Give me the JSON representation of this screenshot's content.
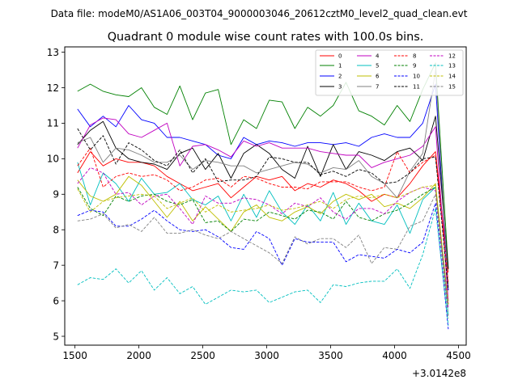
{
  "chart_data": {
    "type": "line",
    "suptitle": "Data file: modeM0/AS1A06_003T04_9000003046_20612cztM0_level2_quad_clean.evt",
    "title": "Quadrant 0 module wise count rates with 100.0s bins.",
    "xlabel": "",
    "ylabel": "",
    "x_offset_label": "+3.0142e8",
    "xlim": [
      1420,
      4560
    ],
    "ylim": [
      4.75,
      13.15
    ],
    "xticks": [
      1500,
      2000,
      2500,
      3000,
      3500,
      4000,
      4500
    ],
    "xtick_labels": [
      "1500",
      "2000",
      "2500",
      "3000",
      "3500",
      "4000",
      "4500"
    ],
    "yticks": [
      5,
      6,
      7,
      8,
      9,
      10,
      11,
      12,
      13
    ],
    "ytick_labels": [
      "5",
      "6",
      "7",
      "8",
      "9",
      "10",
      "11",
      "12",
      "13"
    ],
    "grid": false,
    "legend_position": "top-right",
    "x": [
      1520,
      1620,
      1720,
      1820,
      1920,
      2020,
      2120,
      2220,
      2320,
      2420,
      2520,
      2620,
      2720,
      2820,
      2920,
      3020,
      3120,
      3220,
      3320,
      3420,
      3520,
      3620,
      3720,
      3820,
      3920,
      4020,
      4120,
      4220,
      4320,
      4420
    ],
    "series": [
      {
        "name": "0",
        "color": "#ff0000",
        "dash": "solid",
        "values": [
          9.6,
          10.2,
          9.8,
          10.0,
          9.9,
          9.9,
          9.8,
          9.5,
          9.3,
          9.1,
          9.2,
          9.3,
          8.9,
          9.2,
          9.5,
          9.4,
          9.5,
          9.1,
          9.3,
          9.2,
          9.4,
          9.3,
          9.1,
          8.8,
          9.0,
          8.9,
          9.3,
          9.8,
          10.2,
          6.8
        ]
      },
      {
        "name": "1",
        "color": "#008000",
        "dash": "solid",
        "values": [
          11.9,
          12.1,
          11.9,
          11.8,
          11.75,
          12.0,
          11.45,
          11.25,
          12.05,
          11.1,
          11.85,
          11.95,
          10.4,
          11.1,
          10.85,
          11.65,
          11.6,
          10.85,
          11.45,
          11.2,
          11.5,
          12.15,
          11.35,
          11.2,
          10.95,
          11.5,
          11.05,
          11.95,
          12.7,
          6.9
        ]
      },
      {
        "name": "2",
        "color": "#0000ff",
        "dash": "solid",
        "values": [
          11.4,
          10.9,
          11.2,
          10.9,
          11.5,
          11.1,
          11.0,
          10.6,
          10.6,
          10.5,
          10.4,
          10.1,
          10.0,
          10.6,
          10.4,
          10.5,
          10.45,
          10.35,
          10.45,
          10.45,
          10.4,
          10.45,
          10.35,
          10.6,
          10.7,
          10.6,
          10.6,
          11.0,
          12.1,
          6.3
        ]
      },
      {
        "name": "3",
        "color": "#000000",
        "dash": "solid",
        "values": [
          10.4,
          10.8,
          11.05,
          10.3,
          10.0,
          9.9,
          9.85,
          9.7,
          10.15,
          10.3,
          9.7,
          10.15,
          9.45,
          10.15,
          10.4,
          10.15,
          9.7,
          9.45,
          10.35,
          9.5,
          10.4,
          9.7,
          10.2,
          10.1,
          9.95,
          10.2,
          10.3,
          9.95,
          11.2,
          6.9
        ]
      },
      {
        "name": "4",
        "color": "#c000c0",
        "dash": "solid",
        "values": [
          10.3,
          10.95,
          11.15,
          11.1,
          10.7,
          10.6,
          10.8,
          11.0,
          9.8,
          10.35,
          10.4,
          10.25,
          10.05,
          10.5,
          10.35,
          10.45,
          10.3,
          10.3,
          10.3,
          10.2,
          10.15,
          10.1,
          10.1,
          9.75,
          9.9,
          10.0,
          10.1,
          10.35,
          10.9,
          6.0
        ]
      },
      {
        "name": "5",
        "color": "#00bfbf",
        "dash": "solid",
        "values": [
          9.9,
          8.7,
          9.6,
          9.3,
          8.8,
          9.45,
          9.0,
          9.05,
          9.3,
          8.85,
          8.7,
          8.95,
          8.25,
          9.0,
          8.35,
          9.1,
          8.5,
          8.15,
          8.7,
          8.25,
          9.05,
          8.15,
          8.75,
          8.25,
          8.15,
          8.7,
          7.9,
          8.85,
          9.2,
          5.6
        ]
      },
      {
        "name": "6",
        "color": "#bfbf00",
        "dash": "solid",
        "values": [
          9.4,
          8.95,
          8.8,
          9.0,
          9.5,
          9.25,
          8.8,
          8.35,
          8.8,
          8.25,
          8.65,
          8.3,
          7.95,
          8.5,
          8.7,
          8.35,
          8.25,
          8.5,
          8.65,
          8.45,
          8.8,
          9.0,
          8.85,
          9.0,
          8.65,
          8.75,
          8.6,
          8.9,
          9.3,
          5.9
        ]
      },
      {
        "name": "7",
        "color": "#808080",
        "dash": "solid",
        "values": [
          10.45,
          10.6,
          9.9,
          10.3,
          10.25,
          10.1,
          9.9,
          9.9,
          10.1,
          9.7,
          9.95,
          9.9,
          9.8,
          9.8,
          9.6,
          9.7,
          9.8,
          9.9,
          9.85,
          9.6,
          9.75,
          9.7,
          9.95,
          9.5,
          9.3,
          8.9,
          9.65,
          10.15,
          12.5,
          6.4
        ]
      },
      {
        "name": "8",
        "color": "#ff0000",
        "dash": "dashed",
        "values": [
          9.8,
          10.3,
          9.2,
          9.5,
          9.6,
          9.5,
          9.55,
          9.4,
          9.1,
          9.2,
          9.4,
          9.45,
          9.2,
          9.5,
          9.45,
          9.3,
          9.2,
          9.2,
          9.15,
          9.35,
          9.35,
          9.35,
          9.2,
          9.1,
          9.2,
          10.2,
          9.6,
          9.9,
          10.1,
          6.5
        ]
      },
      {
        "name": "9",
        "color": "#008000",
        "dash": "dashed",
        "values": [
          9.2,
          8.6,
          8.4,
          8.95,
          8.8,
          8.95,
          9.0,
          8.8,
          8.7,
          8.85,
          8.2,
          8.25,
          7.95,
          8.3,
          8.25,
          8.5,
          8.4,
          8.3,
          8.55,
          8.5,
          8.3,
          8.8,
          8.35,
          8.25,
          8.45,
          8.55,
          8.75,
          9.0,
          9.2,
          5.9
        ]
      },
      {
        "name": "10",
        "color": "#0000ff",
        "dash": "dashed",
        "values": [
          8.4,
          8.55,
          8.5,
          8.1,
          8.1,
          8.3,
          8.55,
          8.25,
          8.0,
          7.95,
          8.0,
          7.8,
          7.5,
          7.45,
          7.95,
          7.75,
          7.0,
          7.75,
          7.65,
          7.65,
          7.65,
          7.1,
          7.3,
          7.25,
          7.2,
          7.45,
          7.35,
          7.65,
          8.75,
          5.2
        ]
      },
      {
        "name": "11",
        "color": "#000000",
        "dash": "dashed",
        "values": [
          10.85,
          10.25,
          10.65,
          9.85,
          10.45,
          10.25,
          9.95,
          9.8,
          10.25,
          9.6,
          10.0,
          9.35,
          9.4,
          9.4,
          9.5,
          10.05,
          10.0,
          9.9,
          9.9,
          9.55,
          9.65,
          9.5,
          9.7,
          9.6,
          9.3,
          9.35,
          9.6,
          10.0,
          10.05,
          6.3
        ]
      },
      {
        "name": "12",
        "color": "#c000c0",
        "dash": "dashed",
        "values": [
          9.3,
          9.75,
          9.6,
          9.0,
          9.05,
          8.7,
          8.95,
          9.0,
          8.6,
          8.15,
          8.95,
          8.75,
          8.75,
          8.9,
          8.85,
          8.7,
          8.45,
          8.75,
          8.65,
          8.9,
          8.5,
          8.3,
          8.6,
          8.6,
          8.45,
          8.8,
          9.05,
          9.2,
          9.1,
          5.8
        ]
      },
      {
        "name": "13",
        "color": "#00bfbf",
        "dash": "dashed",
        "values": [
          6.45,
          6.65,
          6.6,
          6.9,
          6.5,
          6.85,
          6.3,
          6.65,
          6.2,
          6.4,
          5.9,
          6.1,
          6.3,
          6.25,
          6.3,
          5.95,
          6.1,
          6.25,
          6.3,
          5.95,
          6.45,
          6.4,
          6.5,
          6.55,
          6.55,
          6.9,
          6.35,
          7.3,
          8.6,
          5.3
        ]
      },
      {
        "name": "14",
        "color": "#bfbf00",
        "dash": "dashed",
        "values": [
          9.15,
          8.5,
          8.8,
          8.9,
          8.95,
          9.0,
          8.95,
          8.6,
          8.75,
          8.9,
          8.5,
          8.7,
          8.5,
          8.55,
          8.6,
          8.7,
          8.55,
          8.6,
          8.7,
          8.8,
          8.6,
          8.85,
          8.95,
          8.9,
          9.0,
          8.9,
          9.05,
          9.2,
          9.25,
          5.9
        ]
      },
      {
        "name": "15",
        "color": "#808080",
        "dash": "dashed",
        "values": [
          8.25,
          8.3,
          8.45,
          8.05,
          8.15,
          7.95,
          8.35,
          7.9,
          7.9,
          8.0,
          7.85,
          7.75,
          7.95,
          7.75,
          7.55,
          7.35,
          7.05,
          7.8,
          7.6,
          7.75,
          7.75,
          7.5,
          7.85,
          7.05,
          7.5,
          7.45,
          8.1,
          8.25,
          9.0,
          5.5
        ]
      }
    ]
  }
}
